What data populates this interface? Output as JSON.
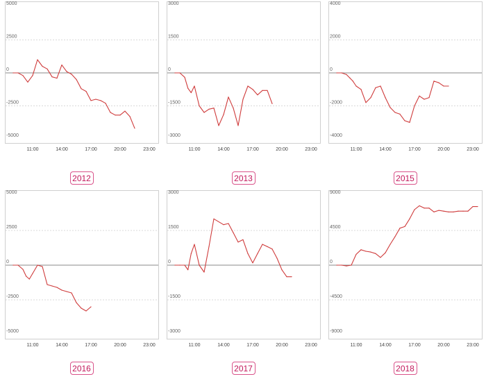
{
  "charts": [
    {
      "year": "2012",
      "chart_data": {
        "type": "line",
        "ylim": [
          -5000,
          5000
        ],
        "y_ticks": [
          5000,
          2500,
          0,
          -2500,
          -5000
        ],
        "y_tick_labels": [
          "5000",
          "2500",
          "0",
          "-2500",
          "-5000"
        ],
        "x_tick_labels": [
          "11:00",
          "14:00",
          "17:00",
          "20:00",
          "23:00"
        ],
        "series": [
          {
            "x": [
              "9:00",
              "9:30",
              "10:00",
              "10:30",
              "11:00",
              "11:30",
              "12:00",
              "12:30",
              "13:00",
              "13:30",
              "14:00",
              "14:30",
              "15:00",
              "15:30",
              "16:00",
              "16:30",
              "17:00",
              "17:30",
              "18:00",
              "18:30",
              "19:00",
              "19:30",
              "20:00",
              "20:30",
              "21:00",
              "21:30"
            ],
            "values": [
              0,
              0,
              -200,
              -700,
              -200,
              1000,
              500,
              300,
              -300,
              -400,
              600,
              100,
              -100,
              -500,
              -1200,
              -1400,
              -2100,
              -2000,
              -2100,
              -2300,
              -3000,
              -3200,
              -3200,
              -2900,
              -3300,
              -4200
            ]
          }
        ]
      }
    },
    {
      "year": "2013",
      "chart_data": {
        "type": "line",
        "ylim": [
          -3000,
          3000
        ],
        "y_ticks": [
          3000,
          1500,
          0,
          -1500,
          -3000
        ],
        "y_tick_labels": [
          "3000",
          "1500",
          "0",
          "-1500",
          "-3000"
        ],
        "x_tick_labels": [
          "11:00",
          "14:00",
          "17:00",
          "20:00",
          "23:00"
        ],
        "series": [
          {
            "x": [
              "9:00",
              "9:30",
              "10:00",
              "10:20",
              "10:40",
              "11:00",
              "11:30",
              "12:00",
              "12:30",
              "13:00",
              "13:30",
              "14:00",
              "14:30",
              "15:00",
              "15:30",
              "16:00",
              "16:30",
              "17:00",
              "17:30",
              "18:00",
              "18:30",
              "19:00"
            ],
            "values": [
              0,
              0,
              -200,
              -700,
              -900,
              -600,
              -1500,
              -1800,
              -1650,
              -1600,
              -2400,
              -1900,
              -1100,
              -1600,
              -2400,
              -1200,
              -600,
              -750,
              -1000,
              -800,
              -800,
              -1400
            ]
          }
        ]
      }
    },
    {
      "year": "2015",
      "chart_data": {
        "type": "line",
        "ylim": [
          -4000,
          4000
        ],
        "y_ticks": [
          4000,
          2000,
          0,
          -2000,
          -4000
        ],
        "y_tick_labels": [
          "4000",
          "2000",
          "0",
          "-2000",
          "-4000"
        ],
        "x_tick_labels": [
          "11:00",
          "14:00",
          "17:00",
          "20:00",
          "23:00"
        ],
        "series": [
          {
            "x": [
              "9:00",
              "9:30",
              "10:00",
              "10:20",
              "10:40",
              "11:00",
              "11:30",
              "12:00",
              "12:30",
              "13:00",
              "13:30",
              "14:00",
              "14:30",
              "15:00",
              "15:30",
              "16:00",
              "16:30",
              "17:00",
              "17:30",
              "18:00",
              "18:30",
              "19:00",
              "19:30",
              "20:00",
              "20:30"
            ],
            "values": [
              0,
              0,
              -100,
              -300,
              -500,
              -800,
              -1000,
              -1800,
              -1500,
              -900,
              -800,
              -1500,
              -2100,
              -2400,
              -2500,
              -2900,
              -3000,
              -2000,
              -1400,
              -1600,
              -1500,
              -500,
              -600,
              -800,
              -800
            ]
          }
        ]
      }
    },
    {
      "year": "2016",
      "chart_data": {
        "type": "line",
        "ylim": [
          -5000,
          5000
        ],
        "y_ticks": [
          5000,
          2500,
          0,
          -2500,
          -5000
        ],
        "y_tick_labels": [
          "5000",
          "2500",
          "0",
          "-2500",
          "-5000"
        ],
        "x_tick_labels": [
          "11:00",
          "14:00",
          "17:00",
          "20:00",
          "23:00"
        ],
        "series": [
          {
            "x": [
              "9:00",
              "9:30",
              "10:00",
              "10:20",
              "10:40",
              "11:00",
              "11:30",
              "12:00",
              "12:30",
              "13:00",
              "13:30",
              "14:00",
              "14:30",
              "15:00",
              "15:30",
              "16:00",
              "16:30",
              "17:00"
            ],
            "values": [
              0,
              0,
              -300,
              -800,
              -1000,
              -600,
              0,
              -100,
              -1400,
              -1500,
              -1600,
              -1800,
              -1900,
              -2000,
              -2700,
              -3100,
              -3300,
              -3000
            ]
          }
        ]
      }
    },
    {
      "year": "2017",
      "chart_data": {
        "type": "line",
        "ylim": [
          -3000,
          3000
        ],
        "y_ticks": [
          3000,
          1500,
          0,
          -1500,
          -3000
        ],
        "y_tick_labels": [
          "3000",
          "1500",
          "0",
          "-1500",
          "-3000"
        ],
        "x_tick_labels": [
          "11:00",
          "14:00",
          "17:00",
          "20:00",
          "23:00"
        ],
        "series": [
          {
            "x": [
              "9:00",
              "9:30",
              "10:00",
              "10:20",
              "10:40",
              "11:00",
              "11:30",
              "12:00",
              "12:30",
              "13:00",
              "14:00",
              "14:30",
              "15:00",
              "15:30",
              "16:00",
              "16:30",
              "17:00",
              "17:30",
              "18:00",
              "18:30",
              "19:00",
              "19:30",
              "20:00",
              "20:30",
              "21:00"
            ],
            "values": [
              0,
              0,
              0,
              -200,
              500,
              900,
              0,
              -300,
              800,
              2000,
              1750,
              1800,
              1400,
              1000,
              1100,
              500,
              100,
              500,
              900,
              800,
              700,
              300,
              -200,
              -500,
              -500
            ]
          }
        ]
      }
    },
    {
      "year": "2018",
      "chart_data": {
        "type": "line",
        "ylim": [
          -9000,
          9000
        ],
        "y_ticks": [
          9000,
          4500,
          0,
          -4500,
          -9000
        ],
        "y_tick_labels": [
          "9000",
          "4500",
          "0",
          "-4500",
          "-9000"
        ],
        "x_tick_labels": [
          "11:00",
          "14:00",
          "17:00",
          "20:00",
          "23:00"
        ],
        "series": [
          {
            "x": [
              "9:00",
              "9:30",
              "10:00",
              "10:30",
              "11:00",
              "11:30",
              "12:00",
              "12:30",
              "13:00",
              "13:30",
              "14:00",
              "14:30",
              "15:00",
              "15:30",
              "16:00",
              "16:30",
              "17:00",
              "17:30",
              "18:00",
              "18:30",
              "19:00",
              "19:30",
              "20:00",
              "20:30",
              "21:00",
              "21:30",
              "22:00",
              "22:30",
              "23:00",
              "23:30"
            ],
            "values": [
              0,
              0,
              -100,
              0,
              1400,
              2000,
              1800,
              1700,
              1500,
              1000,
              1600,
              2700,
              3700,
              4800,
              5000,
              6000,
              7200,
              7700,
              7400,
              7400,
              6900,
              7100,
              7000,
              6900,
              6900,
              7000,
              7000,
              7000,
              7600,
              7600
            ]
          }
        ]
      }
    }
  ]
}
